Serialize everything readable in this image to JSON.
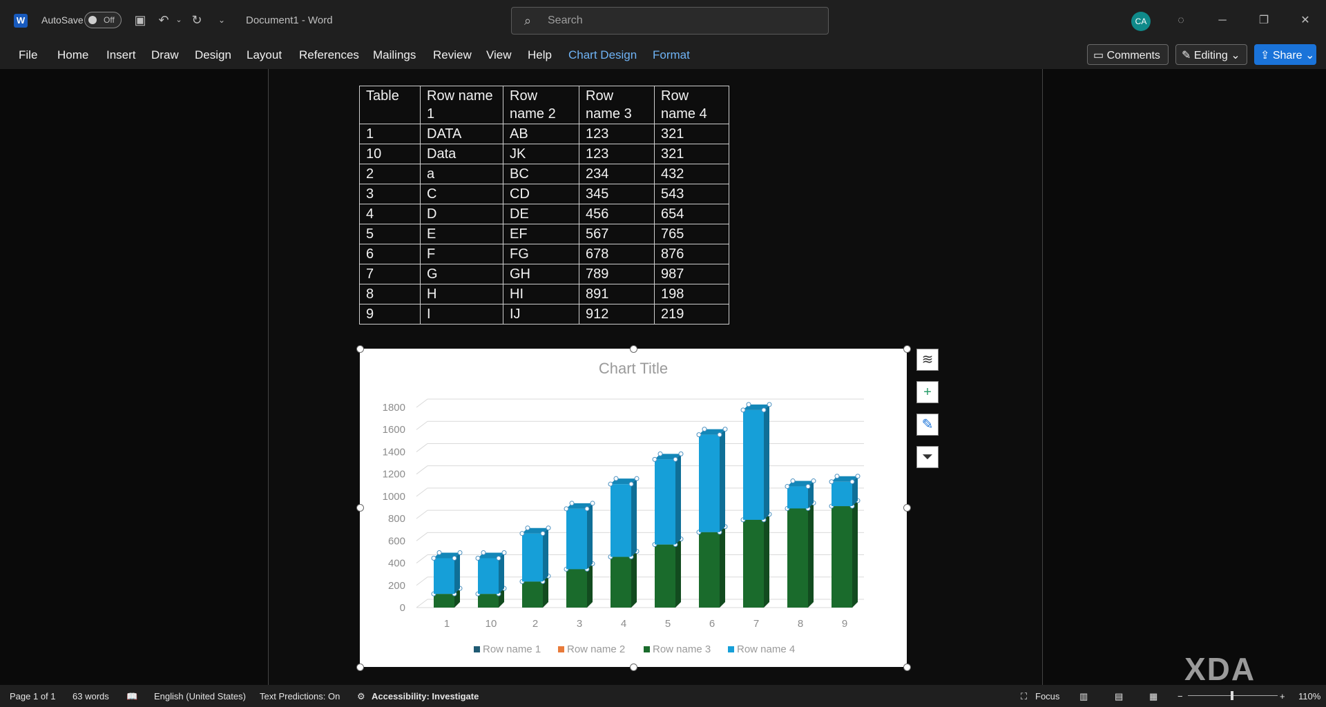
{
  "titlebar": {
    "autosave_label": "AutoSave",
    "autosave_state": "Off",
    "doc_title": "Document1  -  Word",
    "search_placeholder": "Search",
    "avatar_initials": "CA"
  },
  "ribbon": {
    "tabs": [
      "File",
      "Home",
      "Insert",
      "Draw",
      "Design",
      "Layout",
      "References",
      "Mailings",
      "Review",
      "View",
      "Help",
      "Chart Design",
      "Format"
    ],
    "comments_label": "Comments",
    "editing_label": "Editing",
    "share_label": "Share"
  },
  "table": {
    "rows": [
      [
        "Table",
        "Row name 1",
        "Row name 2",
        "Row name 3",
        "Row name 4"
      ],
      [
        "1",
        "DATA",
        "AB",
        "123",
        "321"
      ],
      [
        "10",
        "Data",
        "JK",
        "123",
        "321"
      ],
      [
        "2",
        "a",
        "BC",
        "234",
        "432"
      ],
      [
        "3",
        "C",
        "CD",
        "345",
        "543"
      ],
      [
        "4",
        "D",
        "DE",
        "456",
        "654"
      ],
      [
        "5",
        "E",
        "EF",
        "567",
        "765"
      ],
      [
        "6",
        "F",
        "FG",
        "678",
        "876"
      ],
      [
        "7",
        "G",
        "GH",
        "789",
        "987"
      ],
      [
        "8",
        "H",
        "HI",
        "891",
        "198"
      ],
      [
        "9",
        "I",
        "IJ",
        "912",
        "219"
      ]
    ]
  },
  "chart_data": {
    "type": "bar",
    "stacked": true,
    "style": "3d-column",
    "title": "Chart Title",
    "categories": [
      "1",
      "10",
      "2",
      "3",
      "4",
      "5",
      "6",
      "7",
      "8",
      "9"
    ],
    "series": [
      {
        "name": "Row name 1",
        "values": [
          0,
          0,
          0,
          0,
          0,
          0,
          0,
          0,
          0,
          0
        ],
        "color": "#1f5a73"
      },
      {
        "name": "Row name 2",
        "values": [
          0,
          0,
          0,
          0,
          0,
          0,
          0,
          0,
          0,
          0
        ],
        "color": "#e87a3a"
      },
      {
        "name": "Row name 3",
        "values": [
          123,
          123,
          234,
          345,
          456,
          567,
          678,
          789,
          891,
          912
        ],
        "color": "#1a6b2c"
      },
      {
        "name": "Row name 4",
        "values": [
          321,
          321,
          432,
          543,
          654,
          765,
          876,
          987,
          198,
          219
        ],
        "color": "#169fd8"
      }
    ],
    "yticks": [
      "0",
      "200",
      "400",
      "600",
      "800",
      "1000",
      "1200",
      "1400",
      "1600",
      "1800"
    ],
    "ylim": [
      0,
      1800
    ],
    "grid": true,
    "legend": "bottom"
  },
  "statusbar": {
    "page": "Page 1 of 1",
    "words": "63 words",
    "language": "English (United States)",
    "predictions": "Text Predictions: On",
    "accessibility": "Accessibility: Investigate",
    "focus": "Focus",
    "zoom": "110%"
  },
  "watermark": "XDA"
}
